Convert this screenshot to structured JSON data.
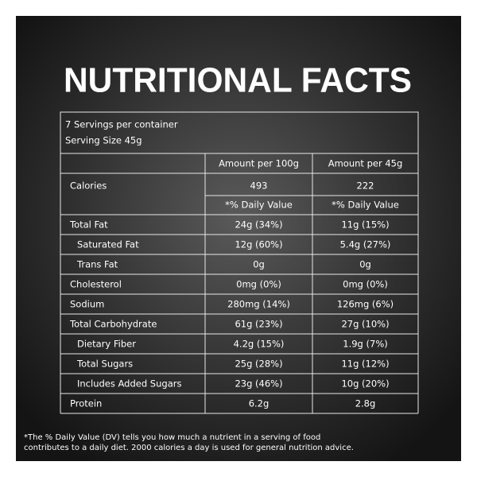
{
  "header": {
    "title": "NUTRITIONAL FACTS"
  },
  "serving": {
    "servings": "7 Servings per container",
    "size": "Serving Size 45g"
  },
  "table": {
    "columns": [
      "Amount per 100g",
      "Amount per 45g"
    ],
    "calories": {
      "label": "Calories",
      "values": [
        "493",
        "222"
      ],
      "dv_labels": [
        "*% Daily Value",
        "*% Daily Value"
      ]
    },
    "rows": [
      {
        "label": "Total Fat",
        "values": [
          "24g (34%)",
          "11g (15%)"
        ],
        "indent": false
      },
      {
        "label": "Saturated Fat",
        "values": [
          "12g (60%)",
          "5.4g (27%)"
        ],
        "indent": true
      },
      {
        "label": "Trans Fat",
        "values": [
          "0g",
          "0g"
        ],
        "indent": true
      },
      {
        "label": "Cholesterol",
        "values": [
          "0mg (0%)",
          "0mg (0%)"
        ],
        "indent": false
      },
      {
        "label": "Sodium",
        "values": [
          "280mg (14%)",
          "126mg (6%)"
        ],
        "indent": false
      },
      {
        "label": "Total Carbohydrate",
        "values": [
          "61g (23%)",
          "27g (10%)"
        ],
        "indent": false
      },
      {
        "label": "Dietary Fiber",
        "values": [
          "4.2g (15%)",
          "1.9g (7%)"
        ],
        "indent": true
      },
      {
        "label": "Total Sugars",
        "values": [
          "25g (28%)",
          "11g (12%)"
        ],
        "indent": true
      },
      {
        "label": "Includes Added Sugars",
        "values": [
          "23g (46%)",
          "10g (20%)"
        ],
        "indent": true
      },
      {
        "label": "Protein",
        "values": [
          "6.2g",
          "2.8g"
        ],
        "indent": false
      }
    ]
  },
  "footnote": [
    "*The % Daily Value (DV) tells you how much a nutrient in a serving of food",
    "contributes to a daily diet. 2000 calories a day is used for general nutrition advice."
  ]
}
